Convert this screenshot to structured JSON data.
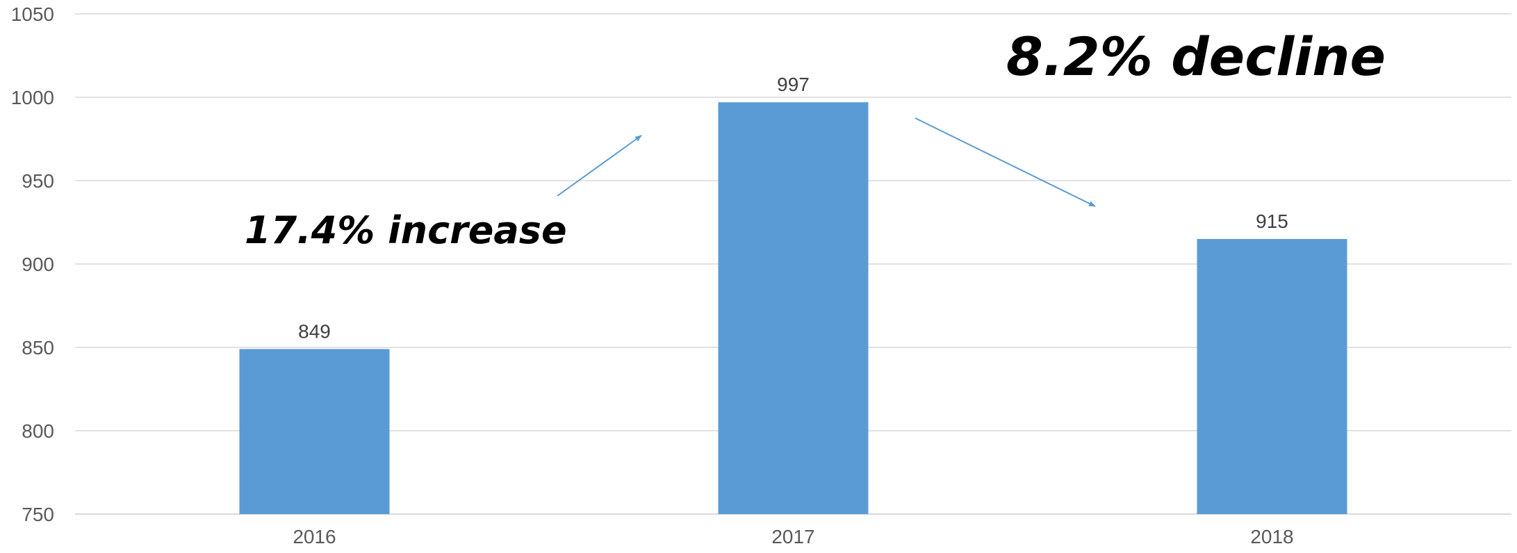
{
  "chart_data": {
    "type": "bar",
    "title": "",
    "xlabel": "",
    "ylabel": "",
    "categories": [
      "2016",
      "2017",
      "2018"
    ],
    "values": [
      849,
      997,
      915
    ],
    "data_labels": [
      "849",
      "997",
      "915"
    ],
    "ylim": [
      750,
      1050
    ],
    "yticks": [
      750,
      800,
      850,
      900,
      950,
      1000,
      1050
    ],
    "ytick_labels": [
      "750",
      "800",
      "850",
      "900",
      "950",
      "1000",
      "1050"
    ],
    "grid": true,
    "legend": "none",
    "bar_color": "#5B9BD5",
    "gridline_color": "#D9D9D9",
    "arrow_color": "#5B9BD5",
    "annotations": [
      {
        "text": "17.4% increase",
        "direction": "up",
        "from": "2016",
        "to": "2017"
      },
      {
        "text": "8.2% decline",
        "direction": "down",
        "from": "2017",
        "to": "2018"
      }
    ]
  }
}
